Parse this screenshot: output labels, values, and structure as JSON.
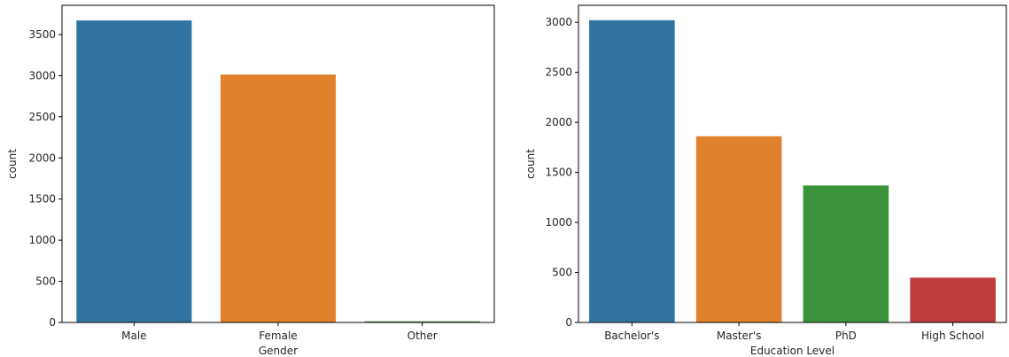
{
  "chart_data": [
    {
      "type": "bar",
      "xlabel": "Gender",
      "ylabel": "count",
      "categories": [
        "Male",
        "Female",
        "Other"
      ],
      "values": [
        3671,
        3013,
        14
      ],
      "colors": [
        "#3274a1",
        "#e1812c",
        "#3a923a"
      ],
      "ylim": [
        0,
        3855
      ],
      "yticks": [
        0,
        500,
        1000,
        1500,
        2000,
        2500,
        3000,
        3500
      ],
      "grid": false,
      "legend": "none"
    },
    {
      "type": "bar",
      "xlabel": "Education Level",
      "ylabel": "count",
      "categories": [
        "Bachelor's",
        "Master's",
        "PhD",
        "High School"
      ],
      "values": [
        3021,
        1861,
        1369,
        448
      ],
      "colors": [
        "#3274a1",
        "#e1812c",
        "#3a923a",
        "#c03d3e"
      ],
      "ylim": [
        0,
        3170
      ],
      "yticks": [
        0,
        500,
        1000,
        1500,
        2000,
        2500,
        3000
      ],
      "grid": false,
      "legend": "none"
    }
  ]
}
